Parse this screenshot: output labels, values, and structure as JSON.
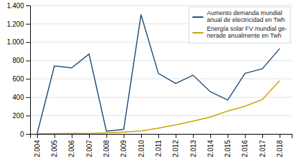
{
  "chart_data": {
    "type": "line",
    "x": [
      2004,
      2005,
      2006,
      2007,
      2008,
      2009,
      2010,
      2011,
      2012,
      2013,
      2014,
      2015,
      2016,
      2017,
      2018
    ],
    "series": [
      {
        "name": "Aumento demanda mundial\nanual de electricidad en Twh",
        "color": "#1F4E79",
        "values": [
          0,
          740,
          720,
          870,
          30,
          50,
          1300,
          660,
          550,
          640,
          460,
          370,
          660,
          710,
          930
        ]
      },
      {
        "name": "Energía solar FV mundial ge-\nnerade anualmente en Twh",
        "color": "#C8A000",
        "values": [
          2,
          4,
          5,
          6,
          12,
          20,
          32,
          63,
          99,
          139,
          185,
          250,
          302,
          375,
          580
        ]
      }
    ],
    "xlim": [
      2003.6,
      2018.7
    ],
    "xticks": [
      {
        "value": 2004,
        "label": "2.004"
      },
      {
        "value": 2005,
        "label": "2.005"
      },
      {
        "value": 2006,
        "label": "2.006"
      },
      {
        "value": 2007,
        "label": "2.007"
      },
      {
        "value": 2008,
        "label": "2.008"
      },
      {
        "value": 2009,
        "label": "2.009"
      },
      {
        "value": 2010,
        "label": "2.010"
      },
      {
        "value": 2011,
        "label": "2.011"
      },
      {
        "value": 2012,
        "label": "2.012"
      },
      {
        "value": 2013,
        "label": "2.013"
      },
      {
        "value": 2014,
        "label": "2.014"
      },
      {
        "value": 2015,
        "label": "2.015"
      },
      {
        "value": 2016,
        "label": "2.016"
      },
      {
        "value": 2017,
        "label": "2.017"
      },
      {
        "value": 2018,
        "label": "2.018"
      }
    ],
    "ylim": [
      0,
      1400
    ],
    "yticks": [
      0,
      200,
      400,
      600,
      800,
      {
        "value": 1000,
        "label": "1.000"
      },
      {
        "value": 1200,
        "label": "1.200"
      },
      {
        "value": 1400,
        "label": "1.400"
      }
    ],
    "grid": true,
    "legend": "upper right"
  }
}
